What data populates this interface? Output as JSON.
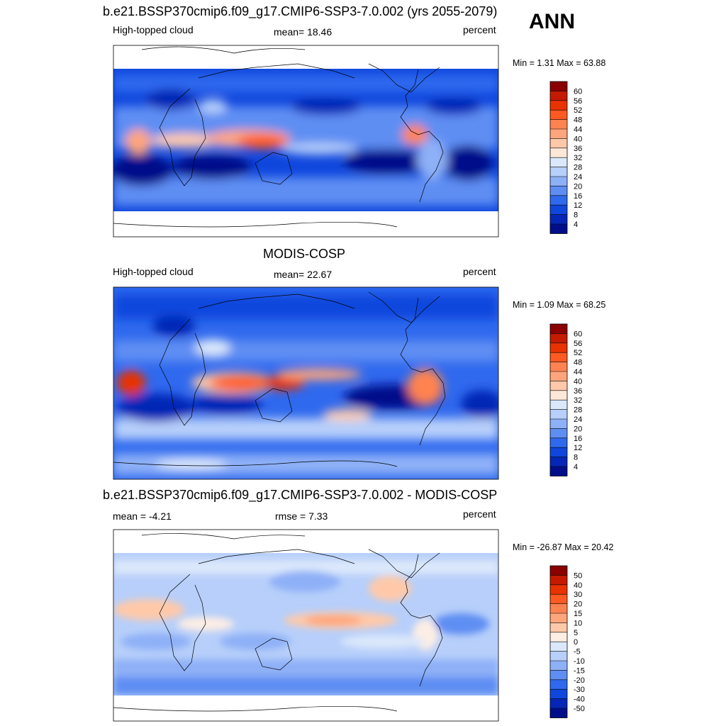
{
  "season": "ANN",
  "chart_data": [
    {
      "type": "heatmap",
      "title": "b.e21.BSSP370cmip6.f09_g17.CMIP6-SSP3-7.0.002 (yrs 2055-2079)",
      "left_label": "High-topped cloud",
      "center_label": "mean=  18.46",
      "right_label": "percent",
      "minmax": "Min =   1.31 Max =  63.88",
      "mean": 18.46,
      "min": 1.31,
      "max": 63.88,
      "colorbar": {
        "levels": [
          "60",
          "56",
          "52",
          "48",
          "44",
          "40",
          "36",
          "32",
          "28",
          "24",
          "20",
          "16",
          "12",
          "8",
          "4"
        ],
        "colors": [
          "#8b0000",
          "#c41a00",
          "#e83300",
          "#ff5a22",
          "#ff8350",
          "#ffa57c",
          "#ffc9a9",
          "#fde8d8",
          "#dbe8fb",
          "#b7cffa",
          "#8eb0f7",
          "#5f8ef3",
          "#2f69ee",
          "#0f47dd",
          "#0526b6",
          "#000e8a"
        ]
      }
    },
    {
      "type": "heatmap",
      "title": "MODIS-COSP",
      "left_label": "High-topped cloud",
      "center_label": "mean=  22.67",
      "right_label": "percent",
      "minmax": "Min =   1.09 Max =  68.25",
      "mean": 22.67,
      "min": 1.09,
      "max": 68.25,
      "colorbar": {
        "levels": [
          "60",
          "56",
          "52",
          "48",
          "44",
          "40",
          "36",
          "32",
          "28",
          "24",
          "20",
          "16",
          "12",
          "8",
          "4"
        ],
        "colors": [
          "#8b0000",
          "#c41a00",
          "#e83300",
          "#ff5a22",
          "#ff8350",
          "#ffa57c",
          "#ffc9a9",
          "#fde8d8",
          "#dbe8fb",
          "#b7cffa",
          "#8eb0f7",
          "#5f8ef3",
          "#2f69ee",
          "#0f47dd",
          "#0526b6",
          "#000e8a"
        ]
      }
    },
    {
      "type": "heatmap",
      "title": "b.e21.BSSP370cmip6.f09_g17.CMIP6-SSP3-7.0.002 - MODIS-COSP",
      "left_label": "mean =  -4.21",
      "center_label": "rmse =   7.33",
      "right_label": "percent",
      "minmax": "Min = -26.87 Max =  20.42",
      "mean": -4.21,
      "rmse": 7.33,
      "min": -26.87,
      "max": 20.42,
      "colorbar": {
        "levels": [
          "50",
          "40",
          "30",
          "20",
          "15",
          "10",
          "5",
          "0",
          "-5",
          "-10",
          "-15",
          "-20",
          "-30",
          "-40",
          "-50"
        ],
        "colors": [
          "#8b0000",
          "#c41a00",
          "#e83300",
          "#ff5a22",
          "#ff8350",
          "#ffa57c",
          "#ffc9a9",
          "#fdeee4",
          "#dbe8fb",
          "#b7cffa",
          "#8eb0f7",
          "#5f8ef3",
          "#2f69ee",
          "#0f47dd",
          "#0526b6",
          "#000e8a"
        ]
      }
    }
  ]
}
